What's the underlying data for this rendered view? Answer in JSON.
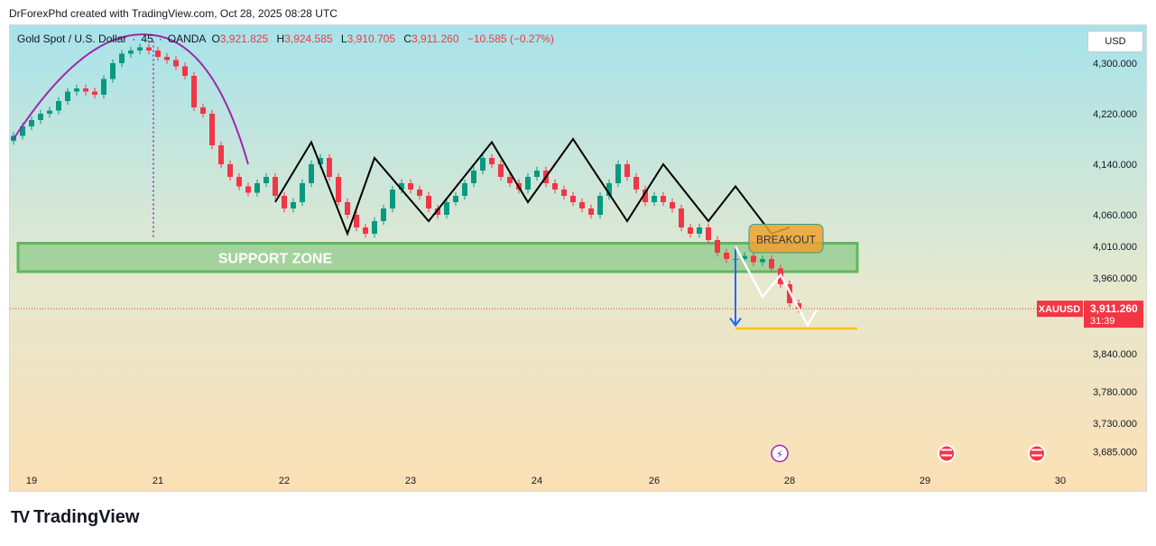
{
  "credit": "DrForexPhd created with TradingView.com, Oct 28, 2025 08:28 UTC",
  "header": {
    "symbol": "Gold Spot / U.S. Dollar",
    "interval": "45",
    "broker": "OANDA",
    "open_label": "O",
    "open": "3,921.825",
    "high_label": "H",
    "high": "3,924.585",
    "low_label": "L",
    "low": "3,910.705",
    "close_label": "C",
    "close": "3,911.260",
    "change": "−10.585 (−0.27%)"
  },
  "currency": "USD",
  "logo_text": "TradingView",
  "colors": {
    "up": "#089981",
    "down": "#f23645",
    "support": "#5cb85c",
    "breakout": "#f0a030",
    "target_line": "#f5c518",
    "arrow_blue": "#2962ff",
    "arc": "#9c27b0"
  },
  "chart_data": {
    "type": "candlestick",
    "instrument": "XAUUSD",
    "ylim": [
      3660,
      4360
    ],
    "y_ticks": [
      "4,300.000",
      "4,220.000",
      "4,140.000",
      "4,060.000",
      "4,010.000",
      "3,960.000",
      "3,840.000",
      "3,780.000",
      "3,730.000",
      "3,685.000"
    ],
    "y_tick_values": [
      4300,
      4220,
      4140,
      4060,
      4010,
      3960,
      3840,
      3780,
      3730,
      3685
    ],
    "x_ticks": [
      "19",
      "21",
      "22",
      "23",
      "24",
      "26",
      "28",
      "29",
      "30"
    ],
    "x_tick_bars": [
      2,
      16,
      30,
      44,
      58,
      71,
      86,
      101,
      116
    ],
    "last_price_label": "XAUUSD",
    "last_price": "3,911.260",
    "last_price_value": 3911.26,
    "countdown": "31:39",
    "support_zone": {
      "label": "SUPPORT ZONE",
      "low": 3970,
      "high": 4015
    },
    "breakout_label": "BREAKOUT",
    "target_level": 3880,
    "closes": [
      4185,
      4200,
      4210,
      4220,
      4225,
      4240,
      4255,
      4260,
      4255,
      4250,
      4275,
      4300,
      4315,
      4320,
      4325,
      4320,
      4310,
      4305,
      4295,
      4280,
      4230,
      4220,
      4170,
      4140,
      4120,
      4105,
      4095,
      4110,
      4120,
      4090,
      4070,
      4080,
      4110,
      4140,
      4150,
      4120,
      4080,
      4060,
      4040,
      4030,
      4050,
      4070,
      4100,
      4110,
      4100,
      4090,
      4070,
      4060,
      4080,
      4090,
      4110,
      4130,
      4150,
      4140,
      4120,
      4110,
      4100,
      4120,
      4130,
      4110,
      4100,
      4090,
      4080,
      4070,
      4060,
      4090,
      4110,
      4140,
      4120,
      4100,
      4080,
      4090,
      4080,
      4070,
      4040,
      4030,
      4040,
      4020,
      4000,
      3990,
      3990,
      3995,
      3985,
      3990,
      3975,
      3950,
      3920,
      3911
    ]
  }
}
